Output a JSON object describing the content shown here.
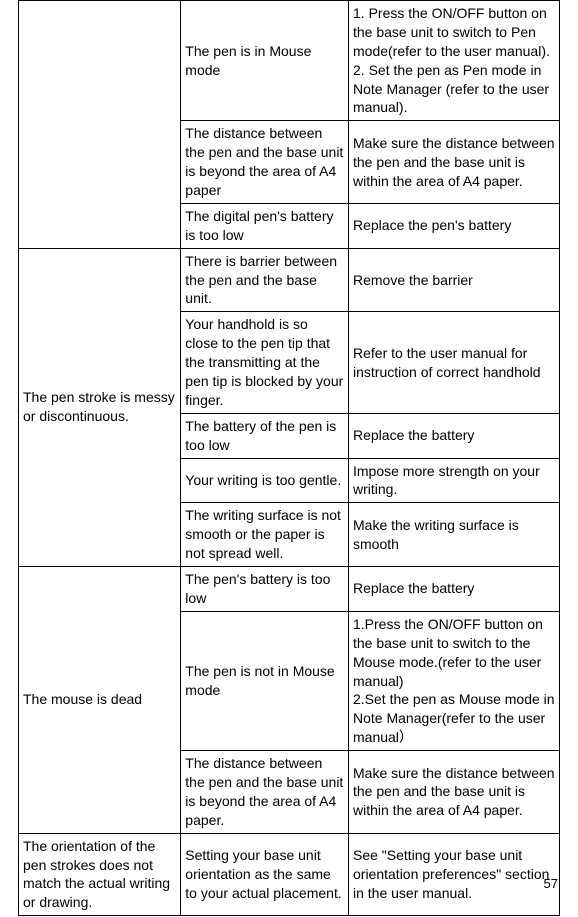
{
  "table": {
    "columns": [
      "problem",
      "cause",
      "solution"
    ],
    "col_widths_pct": [
      30,
      31,
      39
    ],
    "border_color": "#000000",
    "background_color": "#ffffff",
    "font_family": "Arial",
    "font_size_pt": 10,
    "text_color": "#000000",
    "sections": [
      {
        "problem": "",
        "rows": [
          {
            "cause": "The pen is in Mouse mode",
            "solution": "1. Press the ON/OFF button on the base unit to switch to Pen mode(refer to the user manual).\n2. Set the pen as Pen mode in Note Manager (refer to the user manual)."
          },
          {
            "cause": "The distance between the pen and the base unit is beyond the area of A4 paper",
            "solution": "Make sure the distance between the pen and the base unit is within the area of A4 paper."
          },
          {
            "cause": "The digital pen's battery is too low",
            "solution": "Replace the pen's battery"
          }
        ]
      },
      {
        "problem": "The pen stroke is messy or discontinuous.",
        "rows": [
          {
            "cause": "There is barrier between the pen and the base unit.",
            "solution": "Remove the barrier"
          },
          {
            "cause": "Your handhold is so close to the pen tip that the transmitting at the pen tip is blocked by your finger.",
            "solution": "Refer to the user manual for instruction of correct handhold"
          },
          {
            "cause": "The battery of the pen is too low",
            "solution": "Replace the battery"
          },
          {
            "cause": "Your writing is too gentle.",
            "solution": "Impose more strength on your writing."
          },
          {
            "cause": "The writing surface is not smooth or the paper is not spread well.",
            "solution": "Make the writing surface is smooth"
          }
        ]
      },
      {
        "problem": "The mouse is dead",
        "rows": [
          {
            "cause": "The pen's battery is too low",
            "solution": "Replace the battery"
          },
          {
            "cause": "The pen is not in Mouse mode",
            "solution": "1.Press the ON/OFF button on the base unit to switch to the Mouse mode.(refer to the user manual)\n2.Set the pen as Mouse mode in Note Manager(refer to the user manual）"
          },
          {
            "cause": "The distance between the pen and the base unit is beyond the area of A4 paper.",
            "solution": "Make sure the distance between the pen and the base unit is within the area of A4 paper."
          }
        ]
      },
      {
        "problem": "The orientation of the pen strokes does not match the actual writing or drawing.",
        "rows": [
          {
            "cause": "Setting your base unit orientation as the same to your actual placement.",
            "solution": "See \"Setting your base unit orientation preferences\" section in the user manual."
          }
        ]
      }
    ]
  },
  "page_number": "57"
}
